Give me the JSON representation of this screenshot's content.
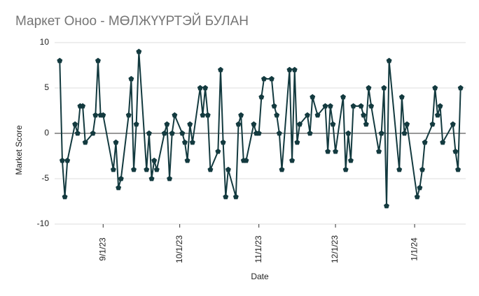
{
  "chart_data": {
    "type": "line",
    "title": "Маркет Оноо - МӨЛЖҮҮРТЭЙ БУЛАН",
    "x_label": "Date",
    "y_label": "Market Score",
    "x": [
      "8/15/23",
      "8/16/23",
      "8/17/23",
      "8/18/23",
      "8/21/23",
      "8/22/23",
      "8/23/23",
      "8/24/23",
      "8/25/23",
      "8/28/23",
      "8/29/23",
      "8/30/23",
      "8/31/23",
      "9/1/23",
      "9/5/23",
      "9/6/23",
      "9/7/23",
      "9/8/23",
      "9/11/23",
      "9/12/23",
      "9/13/23",
      "9/14/23",
      "9/15/23",
      "9/18/23",
      "9/19/23",
      "9/20/23",
      "9/21/23",
      "9/22/23",
      "9/25/23",
      "9/26/23",
      "9/27/23",
      "9/28/23",
      "9/29/23",
      "10/2/23",
      "10/3/23",
      "10/4/23",
      "10/5/23",
      "10/6/23",
      "10/9/23",
      "10/10/23",
      "10/11/23",
      "10/12/23",
      "10/13/23",
      "10/16/23",
      "10/17/23",
      "10/18/23",
      "10/19/23",
      "10/20/23",
      "10/23/23",
      "10/24/23",
      "10/25/23",
      "10/26/23",
      "10/27/23",
      "10/30/23",
      "10/31/23",
      "11/1/23",
      "11/2/23",
      "11/3/23",
      "11/6/23",
      "11/7/23",
      "11/8/23",
      "11/9/23",
      "11/10/23",
      "11/13/23",
      "11/14/23",
      "11/15/23",
      "11/16/23",
      "11/17/23",
      "11/20/23",
      "11/21/23",
      "11/22/23",
      "11/24/23",
      "11/27/23",
      "11/28/23",
      "11/29/23",
      "11/30/23",
      "12/1/23",
      "12/4/23",
      "12/5/23",
      "12/6/23",
      "12/7/23",
      "12/8/23",
      "12/11/23",
      "12/12/23",
      "12/13/23",
      "12/14/23",
      "12/15/23",
      "12/18/23",
      "12/19/23",
      "12/20/23",
      "12/21/23",
      "12/22/23",
      "12/26/23",
      "12/27/23",
      "12/28/23",
      "12/29/23",
      "1/2/24",
      "1/3/24",
      "1/4/24",
      "1/5/24",
      "1/8/24",
      "1/9/24",
      "1/10/24",
      "1/11/24",
      "1/12/24",
      "1/16/24",
      "1/17/24",
      "1/18/24",
      "1/19/24"
    ],
    "series": [
      {
        "name": "Market Score",
        "color": "#133a3f",
        "values": [
          8,
          -3,
          -7,
          -3,
          1,
          0,
          3,
          3,
          -1,
          0,
          2,
          8,
          2,
          2,
          -4,
          -1,
          -6,
          -5,
          2,
          6,
          -4,
          1,
          9,
          -4,
          0,
          -5,
          -3,
          -4,
          0,
          1,
          -5,
          0,
          2,
          0,
          -1,
          -3,
          1,
          -1,
          5,
          2,
          5,
          2,
          -4,
          -2,
          7,
          -1,
          -7,
          -4,
          -7,
          1,
          2,
          -3,
          -3,
          1,
          0,
          0,
          4,
          6,
          6,
          3,
          2,
          0,
          -4,
          7,
          -3,
          7,
          -1,
          1,
          2,
          0,
          4,
          2,
          3,
          -2,
          3,
          1,
          -2,
          4,
          -4,
          0,
          -3,
          3,
          3,
          2,
          1,
          5,
          3,
          -2,
          0,
          5,
          -8,
          8,
          -4,
          4,
          0,
          1,
          -7,
          -6,
          -4,
          -1,
          1,
          5,
          2,
          3,
          -1,
          1,
          -2,
          -4,
          5
        ]
      }
    ],
    "xlim": [
      "8/13/23",
      "1/21/24"
    ],
    "xticks": [
      "9/1/23",
      "10/1/23",
      "11/1/23",
      "12/1/23",
      "1/1/24"
    ],
    "ylim": [
      -10,
      10
    ],
    "yticks": [
      -10,
      -5,
      0,
      5,
      10
    ],
    "grid": true
  }
}
